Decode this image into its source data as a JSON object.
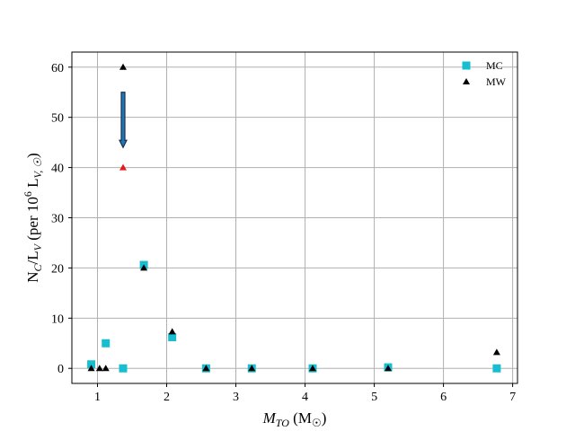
{
  "chart_data": {
    "type": "scatter",
    "xlabel": "M_TO (M☉)",
    "ylabel": "N_C/L_V (per 10^6 L_V,☉)",
    "xlim": [
      0.63,
      7.07
    ],
    "ylim": [
      -3,
      63
    ],
    "xticks": [
      1,
      2,
      3,
      4,
      5,
      6,
      7
    ],
    "yticks": [
      0,
      10,
      20,
      30,
      40,
      50,
      60
    ],
    "grid": true,
    "legend_position": "top-right",
    "series": [
      {
        "name": "MC",
        "marker": "square",
        "color": "#17becf",
        "points": [
          {
            "x": 0.91,
            "y": 0.8
          },
          {
            "x": 1.12,
            "y": 5.0
          },
          {
            "x": 1.37,
            "y": 0.0
          },
          {
            "x": 1.67,
            "y": 20.6
          },
          {
            "x": 2.08,
            "y": 6.2
          },
          {
            "x": 2.57,
            "y": 0.0
          },
          {
            "x": 3.23,
            "y": 0.0
          },
          {
            "x": 4.11,
            "y": 0.0
          },
          {
            "x": 5.2,
            "y": 0.2
          },
          {
            "x": 6.77,
            "y": 0.0
          }
        ]
      },
      {
        "name": "MW",
        "marker": "triangle",
        "color": "#000000",
        "points": [
          {
            "x": 0.91,
            "y": 0.0
          },
          {
            "x": 1.03,
            "y": 0.0
          },
          {
            "x": 1.12,
            "y": 0.0
          },
          {
            "x": 1.37,
            "y": 60.0
          },
          {
            "x": 1.67,
            "y": 20.0
          },
          {
            "x": 2.08,
            "y": 7.3
          },
          {
            "x": 2.57,
            "y": 0.0
          },
          {
            "x": 3.23,
            "y": 0.0
          },
          {
            "x": 4.11,
            "y": 0.0
          },
          {
            "x": 5.2,
            "y": 0.0
          },
          {
            "x": 6.77,
            "y": 3.2
          }
        ]
      }
    ],
    "annotations": [
      {
        "type": "arrow",
        "x": 1.37,
        "y_from": 55,
        "y_to": 44,
        "color": "#17314d"
      },
      {
        "type": "marker",
        "marker": "triangle",
        "color": "#e31a1c",
        "x": 1.37,
        "y": 40
      }
    ]
  }
}
